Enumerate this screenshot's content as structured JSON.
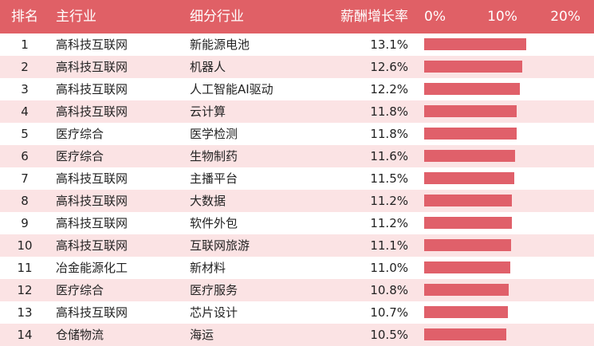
{
  "header": {
    "rank": "排名",
    "main_industry": "主行业",
    "sub_industry": "细分行业",
    "growth_rate": "薪酬增长率",
    "ticks": [
      "0%",
      "10%",
      "20%"
    ]
  },
  "colors": {
    "header_bg": "#e06066",
    "bar": "#e0606a",
    "stripe": "#fbe3e4"
  },
  "chart_data": {
    "type": "bar",
    "orientation": "horizontal",
    "xlim": [
      0,
      20
    ],
    "x_ticks": [
      "0%",
      "10%",
      "20%"
    ],
    "rows": [
      {
        "rank": "1",
        "main": "高科技互联网",
        "sub": "新能源电池",
        "rate_label": "13.1%",
        "value": 13.1
      },
      {
        "rank": "2",
        "main": "高科技互联网",
        "sub": "机器人",
        "rate_label": "12.6%",
        "value": 12.6
      },
      {
        "rank": "3",
        "main": "高科技互联网",
        "sub": "人工智能AI驱动",
        "rate_label": "12.2%",
        "value": 12.2
      },
      {
        "rank": "4",
        "main": "高科技互联网",
        "sub": "云计算",
        "rate_label": "11.8%",
        "value": 11.8
      },
      {
        "rank": "5",
        "main": "医疗综合",
        "sub": "医学检测",
        "rate_label": "11.8%",
        "value": 11.8
      },
      {
        "rank": "6",
        "main": "医疗综合",
        "sub": "生物制药",
        "rate_label": "11.6%",
        "value": 11.6
      },
      {
        "rank": "7",
        "main": "高科技互联网",
        "sub": "主播平台",
        "rate_label": "11.5%",
        "value": 11.5
      },
      {
        "rank": "8",
        "main": "高科技互联网",
        "sub": "大数据",
        "rate_label": "11.2%",
        "value": 11.2
      },
      {
        "rank": "9",
        "main": "高科技互联网",
        "sub": "软件外包",
        "rate_label": "11.2%",
        "value": 11.2
      },
      {
        "rank": "10",
        "main": "高科技互联网",
        "sub": "互联网旅游",
        "rate_label": "11.1%",
        "value": 11.1
      },
      {
        "rank": "11",
        "main": "冶金能源化工",
        "sub": "新材料",
        "rate_label": "11.0%",
        "value": 11.0
      },
      {
        "rank": "12",
        "main": "医疗综合",
        "sub": "医疗服务",
        "rate_label": "10.8%",
        "value": 10.8
      },
      {
        "rank": "13",
        "main": "高科技互联网",
        "sub": "芯片设计",
        "rate_label": "10.7%",
        "value": 10.7
      },
      {
        "rank": "14",
        "main": "仓储物流",
        "sub": "海运",
        "rate_label": "10.5%",
        "value": 10.5
      }
    ]
  }
}
